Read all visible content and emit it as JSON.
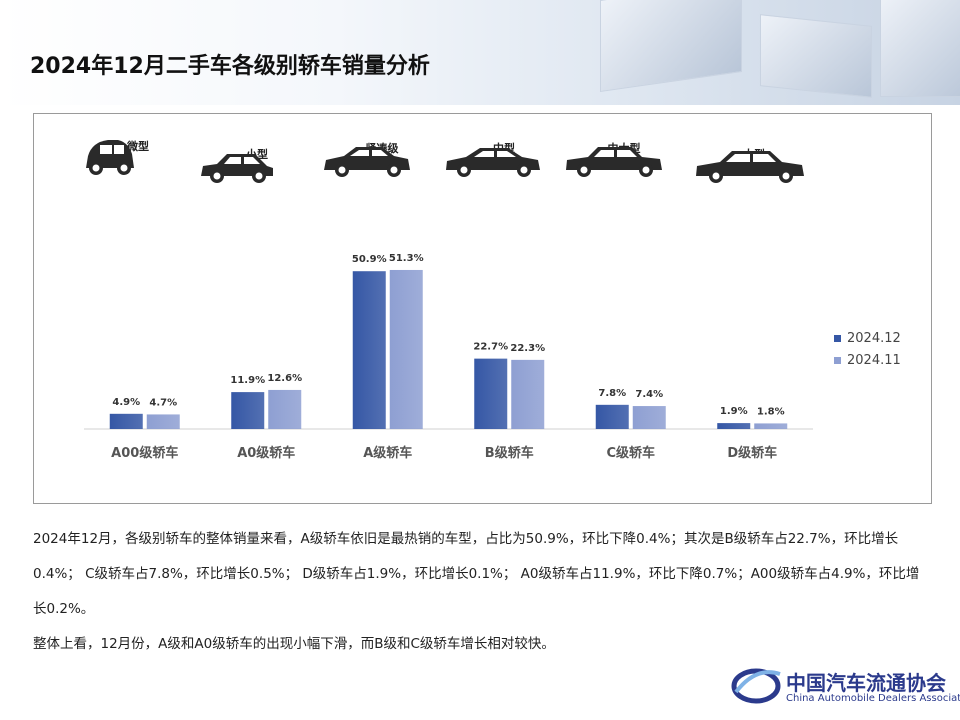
{
  "page": {
    "title": "2024年12月二手车各级别轿车销量分析"
  },
  "car_types": [
    {
      "label": "微型",
      "icon": "micro-car-icon"
    },
    {
      "label": "小型",
      "icon": "hatchback-car-icon"
    },
    {
      "label": "紧凑级",
      "icon": "compact-sedan-icon"
    },
    {
      "label": "中型",
      "icon": "midsize-sedan-icon"
    },
    {
      "label": "中大型",
      "icon": "large-sedan-icon"
    },
    {
      "label": "大型",
      "icon": "full-size-sedan-icon"
    }
  ],
  "colors": {
    "series_2024_12": "#3557a5",
    "series_2024_11": "#8e9fd2",
    "car_body": "#2a2a2a"
  },
  "chart_data": {
    "type": "bar",
    "title": "",
    "xlabel": "",
    "ylabel": "",
    "categories": [
      "A00级轿车",
      "A0级轿车",
      "A级轿车",
      "B级轿车",
      "C级轿车",
      "D级轿车"
    ],
    "series": [
      {
        "name": "2024.12",
        "values": [
          4.9,
          11.9,
          50.9,
          22.7,
          7.8,
          1.9
        ],
        "labels": [
          "4.9%",
          "11.9%",
          "50.9%",
          "22.7%",
          "7.8%",
          "1.9%"
        ]
      },
      {
        "name": "2024.11",
        "values": [
          4.7,
          12.6,
          51.3,
          22.3,
          7.4,
          1.8
        ],
        "labels": [
          "4.7%",
          "12.6%",
          "51.3%",
          "22.3%",
          "7.4%",
          "1.8%"
        ]
      }
    ],
    "ylim": [
      0,
      60
    ],
    "grid": false,
    "legend": "right"
  },
  "summary": {
    "paragraph_1": "2024年12月，各级别轿车的整体销量来看，A级轿车依旧是最热销的车型，占比为50.9%，环比下降0.4%；其次是B级轿车占22.7%，环比增长0.4%； C级轿车占7.8%，环比增长0.5%； D级轿车占1.9%，环比增长0.1%； A0级轿车占11.9%，环比下降0.7%；A00级轿车占4.9%，环比增长0.2%。",
    "paragraph_2": "整体上看，12月份，A级和A0级轿车的出现小幅下滑，而B级和C级轿车增长相对较快。"
  },
  "logo": {
    "name_cn": "中国汽车流通协会",
    "name_en": "China Automobile Dealers Association",
    "mark": "CADA"
  }
}
